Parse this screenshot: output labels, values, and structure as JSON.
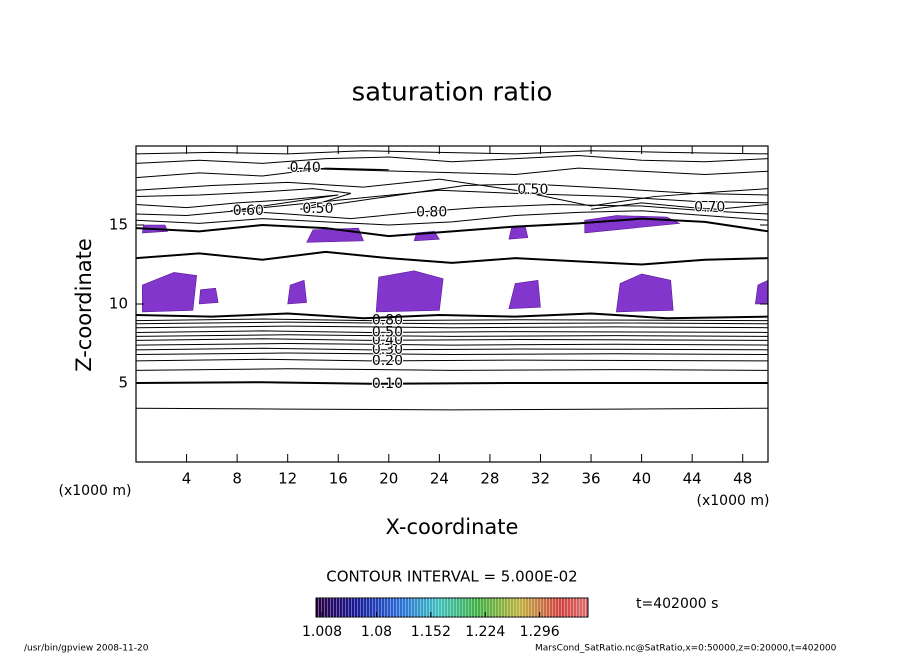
{
  "chart_data": {
    "type": "contour",
    "title": "saturation ratio",
    "x_label": "X-coordinate",
    "y_label": "Z-coordinate",
    "axis_unit": "(x1000 m)",
    "xlim": [
      0,
      50
    ],
    "ylim": [
      0,
      20
    ],
    "xticks": [
      4,
      8,
      12,
      16,
      20,
      24,
      28,
      32,
      36,
      40,
      44,
      48
    ],
    "yticks": [
      5,
      10,
      15
    ],
    "contour_interval": "CONTOUR INTERVAL = 5.000E-02",
    "time": "t=402000 s",
    "footer_left": "/usr/bin/gpview  2008-11-20",
    "footer_right": "MarsCond_SatRatio.nc@SatRatio,x=0:50000,z=0:20000,t=402000",
    "line_color": "#000000",
    "shade_color": "#8236cc",
    "colorbar": {
      "lim": [
        1.0,
        1.36
      ],
      "ticks": [
        1.008,
        1.08,
        1.152,
        1.224,
        1.296
      ]
    },
    "contours": [
      {
        "level": 0.05,
        "x": [
          0,
          12,
          25,
          38,
          50
        ],
        "z": [
          3.4,
          3.35,
          3.3,
          3.35,
          3.4
        ]
      },
      {
        "level": 0.1,
        "label": "0.10",
        "x": [
          0,
          10,
          18.5,
          30,
          50
        ],
        "z": [
          5.0,
          5.05,
          4.95,
          5.0,
          5.0
        ]
      },
      {
        "level": 0.15,
        "x": [
          0,
          12,
          25,
          38,
          50
        ],
        "z": [
          5.8,
          5.9,
          5.8,
          5.85,
          5.8
        ]
      },
      {
        "level": 0.2,
        "label": "0.20",
        "x": [
          0,
          10,
          18.5,
          30,
          50
        ],
        "z": [
          6.4,
          6.5,
          6.4,
          6.45,
          6.4
        ]
      },
      {
        "level": 0.25,
        "x": [
          0,
          12,
          25,
          38,
          50
        ],
        "z": [
          6.8,
          6.9,
          6.8,
          6.85,
          6.8
        ]
      },
      {
        "level": 0.3,
        "label": "0.30",
        "x": [
          0,
          10,
          18.5,
          30,
          50
        ],
        "z": [
          7.1,
          7.2,
          7.1,
          7.15,
          7.1
        ]
      },
      {
        "level": 0.35,
        "x": [
          0,
          12,
          25,
          38,
          50
        ],
        "z": [
          7.4,
          7.5,
          7.4,
          7.45,
          7.4
        ]
      },
      {
        "level": 0.4,
        "label": "0.40",
        "x": [
          0,
          10,
          18.5,
          30,
          50
        ],
        "z": [
          7.7,
          7.8,
          7.7,
          7.75,
          7.7
        ]
      },
      {
        "level": 0.45,
        "x": [
          0,
          12,
          25,
          38,
          50
        ],
        "z": [
          7.95,
          8.05,
          7.95,
          8.0,
          7.95
        ]
      },
      {
        "level": 0.5,
        "label": "0.50",
        "x": [
          0,
          10,
          18.5,
          30,
          50
        ],
        "z": [
          8.2,
          8.3,
          8.2,
          8.25,
          8.2
        ]
      },
      {
        "level": 0.6,
        "x": [
          0,
          12,
          25,
          38,
          50
        ],
        "z": [
          8.5,
          8.6,
          8.5,
          8.55,
          8.5
        ]
      },
      {
        "level": 0.7,
        "x": [
          0,
          12,
          25,
          38,
          50
        ],
        "z": [
          8.75,
          8.85,
          8.75,
          8.8,
          8.75
        ]
      },
      {
        "level": 0.8,
        "label": "0.80",
        "x": [
          0,
          10,
          18.5,
          30,
          50
        ],
        "z": [
          8.95,
          9.05,
          8.95,
          9.0,
          8.95
        ]
      },
      {
        "level": 0.95,
        "x": [
          0,
          6,
          12,
          18,
          24,
          30,
          36,
          42,
          50
        ],
        "z": [
          9.3,
          9.2,
          9.4,
          9.1,
          9.3,
          9.2,
          9.4,
          9.1,
          9.2
        ]
      },
      {
        "level": 0.95,
        "x": [
          0,
          5,
          10,
          15,
          20,
          25,
          30,
          35,
          40,
          45,
          50
        ],
        "z": [
          12.9,
          13.2,
          12.8,
          13.3,
          12.9,
          12.6,
          12.9,
          12.7,
          12.5,
          12.8,
          12.9
        ]
      },
      {
        "level": 0.95,
        "x": [
          0,
          5,
          10,
          15,
          20,
          25,
          30,
          35,
          40,
          45,
          50
        ],
        "z": [
          14.8,
          14.6,
          15.0,
          14.8,
          14.3,
          14.6,
          14.9,
          15.1,
          15.4,
          15.2,
          14.6
        ]
      },
      {
        "level": 0.9,
        "x": [
          0,
          5,
          10,
          15,
          20,
          25,
          30,
          35,
          40,
          45,
          50
        ],
        "z": [
          15.3,
          15.1,
          15.4,
          15.2,
          15.0,
          15.2,
          15.6,
          15.8,
          15.9,
          15.6,
          15.3
        ]
      },
      {
        "level": 0.8,
        "label": "0.80",
        "x": [
          0,
          4,
          8,
          12,
          17,
          22,
          27,
          33,
          40,
          45,
          50
        ],
        "z": [
          15.7,
          15.6,
          15.9,
          15.7,
          15.4,
          15.8,
          16.1,
          16.3,
          16.2,
          15.9,
          15.7
        ]
      },
      {
        "level": 0.6,
        "label": "0.60",
        "x": [
          0,
          4,
          8,
          12,
          16,
          7.5,
          24,
          30,
          38,
          44,
          50
        ],
        "z": [
          16.3,
          16.1,
          16.4,
          16.6,
          16.9,
          15.9,
          17.2,
          17.0,
          16.8,
          16.5,
          16.4
        ]
      },
      {
        "level": 0.5,
        "label": "0.50",
        "x": [
          0,
          5,
          10,
          14,
          17,
          13,
          26,
          31,
          38,
          44,
          50
        ],
        "z": [
          16.8,
          16.9,
          17.1,
          17.3,
          17.0,
          16.0,
          17.5,
          17.6,
          17.3,
          17.0,
          16.9
        ]
      },
      {
        "level": 0.5,
        "label": "0.50",
        "x": [
          0,
          6,
          12,
          18,
          24,
          30,
          36,
          41,
          46,
          50
        ],
        "z": [
          17.2,
          17.5,
          17.7,
          17.4,
          17.9,
          17.2,
          16.2,
          16.8,
          17.1,
          17.3
        ]
      },
      {
        "level": 0.7,
        "label": "0.70",
        "x": [
          36,
          40,
          44,
          46,
          50
        ],
        "z": [
          16.0,
          16.4,
          16.1,
          16.0,
          16.3
        ]
      },
      {
        "level": 0.4,
        "label": "0.40",
        "x": [
          0,
          5,
          10,
          15,
          20,
          12,
          30,
          35,
          40,
          45,
          50
        ],
        "z": [
          18.0,
          18.3,
          18.1,
          18.6,
          18.5,
          18.6,
          18.2,
          18.6,
          18.4,
          18.2,
          18.4
        ]
      },
      {
        "level": 0.3,
        "x": [
          0,
          5,
          10,
          15,
          20,
          25,
          30,
          35,
          40,
          45,
          50
        ],
        "z": [
          18.9,
          19.1,
          18.9,
          19.2,
          19.3,
          19.0,
          19.2,
          19.4,
          19.1,
          19.0,
          19.2
        ]
      },
      {
        "level": 0.2,
        "x": [
          0,
          6,
          12,
          18,
          24,
          30,
          36,
          42,
          50
        ],
        "z": [
          19.5,
          19.6,
          19.5,
          19.7,
          19.6,
          19.5,
          19.7,
          19.6,
          19.5
        ]
      }
    ],
    "shaded": [
      {
        "x": [
          0.5,
          4.5,
          4.8,
          3,
          0.5
        ],
        "z": [
          9.5,
          9.6,
          11.8,
          12.0,
          11.2
        ]
      },
      {
        "x": [
          19,
          24,
          24.3,
          22,
          19.2
        ],
        "z": [
          9.5,
          9.6,
          11.6,
          12.1,
          11.7
        ]
      },
      {
        "x": [
          38,
          42.5,
          42.3,
          40,
          38.3
        ],
        "z": [
          9.5,
          9.6,
          11.5,
          11.9,
          11.3
        ]
      },
      {
        "x": [
          35.5,
          43,
          42,
          38,
          35.5
        ],
        "z": [
          14.5,
          15.1,
          15.5,
          15.6,
          15.3
        ]
      },
      {
        "x": [
          0.5,
          2.5,
          2.3,
          0.6
        ],
        "z": [
          14.5,
          14.6,
          15.0,
          15.0
        ]
      },
      {
        "x": [
          13.5,
          18,
          17.6,
          14
        ],
        "z": [
          13.9,
          14.0,
          14.8,
          14.7
        ]
      },
      {
        "x": [
          49,
          50,
          50,
          49.2
        ],
        "z": [
          10.0,
          10.0,
          11.5,
          11.2
        ]
      },
      {
        "x": [
          29.5,
          32,
          31.8,
          30
        ],
        "z": [
          9.7,
          9.8,
          11.5,
          11.3
        ]
      },
      {
        "x": [
          5,
          6.5,
          6.3,
          5.1
        ],
        "z": [
          10.0,
          10.1,
          11.0,
          10.9
        ]
      },
      {
        "x": [
          12,
          13.5,
          13.3,
          12.2
        ],
        "z": [
          10.0,
          10.1,
          11.5,
          11.2
        ]
      },
      {
        "x": [
          22,
          24,
          23.6,
          22.2
        ],
        "z": [
          14.0,
          14.1,
          14.6,
          14.5
        ]
      },
      {
        "x": [
          29.5,
          31,
          30.8,
          29.7
        ],
        "z": [
          14.1,
          14.2,
          14.9,
          14.8
        ]
      }
    ]
  }
}
